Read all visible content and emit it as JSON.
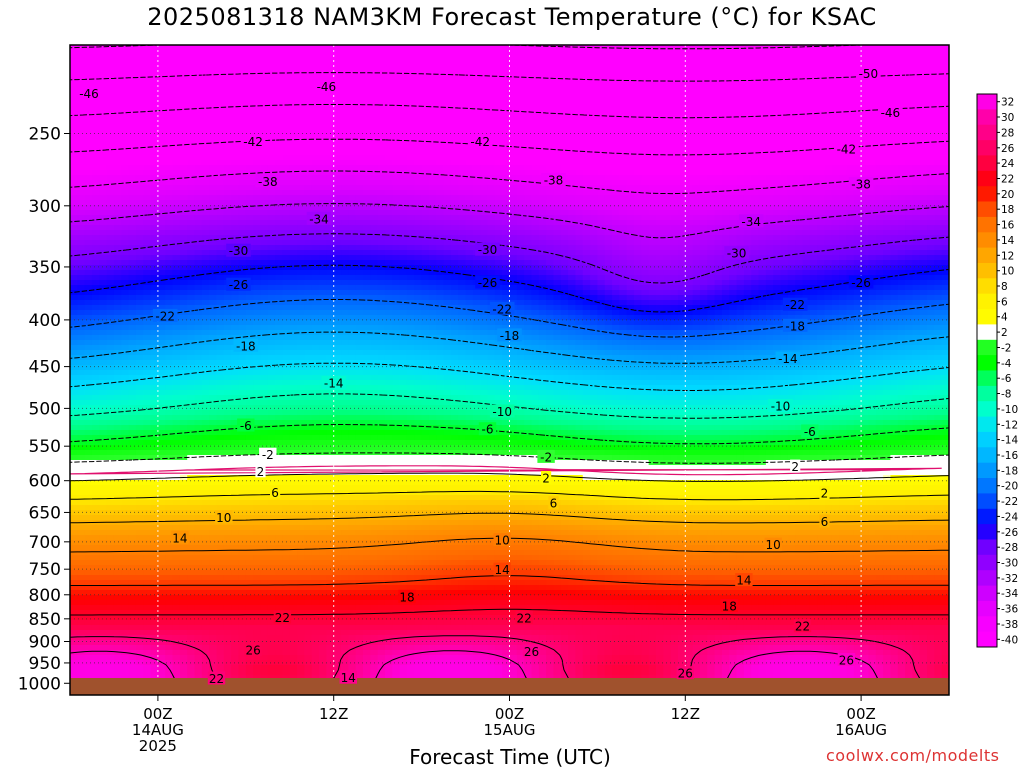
{
  "chart_data": {
    "type": "heatmap",
    "title": "2025081318 NAM3KM Forecast Temperature (°C) for KSAC",
    "xlabel": "Forecast Time (UTC)",
    "ylabel": "",
    "y_scale": "log",
    "y_reversed": true,
    "y_unit": "hPa",
    "ylim": [
      1030,
      200
    ],
    "y_ticks": [
      250,
      300,
      350,
      400,
      450,
      500,
      550,
      600,
      650,
      700,
      750,
      800,
      850,
      900,
      950,
      1000
    ],
    "x_unit": "hours since 2025-08-13 18Z",
    "xlim": [
      0,
      60
    ],
    "x_ticks": [
      {
        "x": 6,
        "label": [
          "00Z",
          "14AUG",
          "2025"
        ]
      },
      {
        "x": 18,
        "label": [
          "12Z"
        ]
      },
      {
        "x": 30,
        "label": [
          "00Z",
          "15AUG"
        ]
      },
      {
        "x": 42,
        "label": [
          "12Z"
        ]
      },
      {
        "x": 54,
        "label": [
          "00Z",
          "16AUG"
        ]
      }
    ],
    "grid": true,
    "color_scale": {
      "levels": [
        -40,
        -38,
        -36,
        -34,
        -32,
        -30,
        -28,
        -26,
        -24,
        -22,
        -20,
        -18,
        -16,
        -14,
        -12,
        -10,
        -8,
        -6,
        -4,
        -2,
        2,
        4,
        6,
        8,
        10,
        12,
        14,
        16,
        18,
        20,
        22,
        24,
        26,
        28,
        30,
        32
      ],
      "labels": [
        "32",
        "30",
        "28",
        "26",
        "24",
        "22",
        "20",
        "18",
        "16",
        "14",
        "12",
        "10",
        "8",
        "6",
        "4",
        "2",
        "-2",
        "-4",
        "-6",
        "-8",
        "-10",
        "-12",
        "-14",
        "-16",
        "-18",
        "-20",
        "-22",
        "-24",
        "-26",
        "-28",
        "-30",
        "-32",
        "-34",
        "-36",
        "-38",
        "-40"
      ],
      "stops": [
        {
          "t": -50,
          "c": "#ff00ff"
        },
        {
          "t": -40,
          "c": "#ff00ff"
        },
        {
          "t": -36,
          "c": "#dd00ff"
        },
        {
          "t": -32,
          "c": "#a000ff"
        },
        {
          "t": -29,
          "c": "#7000ff"
        },
        {
          "t": -26,
          "c": "#0000ff"
        },
        {
          "t": -22,
          "c": "#0066ff"
        },
        {
          "t": -18,
          "c": "#00aaff"
        },
        {
          "t": -14,
          "c": "#00ddff"
        },
        {
          "t": -11,
          "c": "#00ffcc"
        },
        {
          "t": -8,
          "c": "#00ff88"
        },
        {
          "t": -5,
          "c": "#00ff00"
        },
        {
          "t": -2.01,
          "c": "#33ff33"
        },
        {
          "t": -2,
          "c": "#ffffff"
        },
        {
          "t": 2,
          "c": "#ffffff"
        },
        {
          "t": 2.01,
          "c": "#ffff00"
        },
        {
          "t": 6,
          "c": "#ffee00"
        },
        {
          "t": 8,
          "c": "#ffcc00"
        },
        {
          "t": 12,
          "c": "#ff9900"
        },
        {
          "t": 16,
          "c": "#ff6600"
        },
        {
          "t": 20,
          "c": "#ff0000"
        },
        {
          "t": 24,
          "c": "#ff0055"
        },
        {
          "t": 28,
          "c": "#ff0099"
        },
        {
          "t": 32,
          "c": "#ff00dd"
        },
        {
          "t": 40,
          "c": "#ff00ff"
        }
      ]
    },
    "ground_color": "#a0522d",
    "contour_labels": [
      {
        "v": -50,
        "x": 54.5,
        "p": 215
      },
      {
        "v": -46,
        "x": 1.3,
        "p": 226
      },
      {
        "v": -46,
        "x": 17.5,
        "p": 222
      },
      {
        "v": -46,
        "x": 56.0,
        "p": 237
      },
      {
        "v": -42,
        "x": 12.5,
        "p": 255
      },
      {
        "v": -42,
        "x": 28.0,
        "p": 255
      },
      {
        "v": -42,
        "x": 53.0,
        "p": 260
      },
      {
        "v": -38,
        "x": 13.5,
        "p": 282
      },
      {
        "v": -38,
        "x": 33.0,
        "p": 281
      },
      {
        "v": -38,
        "x": 54.0,
        "p": 284
      },
      {
        "v": -34,
        "x": 17.0,
        "p": 310
      },
      {
        "v": -34,
        "x": 46.5,
        "p": 312
      },
      {
        "v": -30,
        "x": 11.5,
        "p": 336
      },
      {
        "v": -30,
        "x": 28.5,
        "p": 335
      },
      {
        "v": -30,
        "x": 45.5,
        "p": 338
      },
      {
        "v": -26,
        "x": 11.5,
        "p": 366
      },
      {
        "v": -26,
        "x": 28.5,
        "p": 364
      },
      {
        "v": -26,
        "x": 54.0,
        "p": 364
      },
      {
        "v": -22,
        "x": 6.5,
        "p": 396
      },
      {
        "v": -22,
        "x": 29.5,
        "p": 389
      },
      {
        "v": -22,
        "x": 49.5,
        "p": 385
      },
      {
        "v": -18,
        "x": 12.0,
        "p": 427
      },
      {
        "v": -18,
        "x": 30.0,
        "p": 416
      },
      {
        "v": -18,
        "x": 49.5,
        "p": 406
      },
      {
        "v": -14,
        "x": 18.0,
        "p": 469
      },
      {
        "v": -14,
        "x": 49.0,
        "p": 441
      },
      {
        "v": -10,
        "x": 29.5,
        "p": 504
      },
      {
        "v": -10,
        "x": 48.5,
        "p": 497
      },
      {
        "v": -6,
        "x": 12.0,
        "p": 522
      },
      {
        "v": -6,
        "x": 28.5,
        "p": 527
      },
      {
        "v": -6,
        "x": 50.5,
        "p": 530
      },
      {
        "v": -2,
        "x": 13.5,
        "p": 562
      },
      {
        "v": -2,
        "x": 32.5,
        "p": 565
      },
      {
        "v": 2,
        "x": 13.0,
        "p": 586
      },
      {
        "v": 2,
        "x": 32.5,
        "p": 596
      },
      {
        "v": 2,
        "x": 49.5,
        "p": 579
      },
      {
        "v": 2,
        "x": 51.5,
        "p": 619
      },
      {
        "v": 6,
        "x": 14.0,
        "p": 618
      },
      {
        "v": 6,
        "x": 33.0,
        "p": 635
      },
      {
        "v": 6,
        "x": 51.5,
        "p": 665
      },
      {
        "v": 10,
        "x": 10.5,
        "p": 658
      },
      {
        "v": 10,
        "x": 29.5,
        "p": 697
      },
      {
        "v": 10,
        "x": 48.0,
        "p": 705
      },
      {
        "v": 14,
        "x": 7.5,
        "p": 693
      },
      {
        "v": 14,
        "x": 29.5,
        "p": 751
      },
      {
        "v": 14,
        "x": 46.0,
        "p": 771
      },
      {
        "v": 18,
        "x": 23.0,
        "p": 804
      },
      {
        "v": 18,
        "x": 45.0,
        "p": 823
      },
      {
        "v": 22,
        "x": 14.5,
        "p": 847
      },
      {
        "v": 22,
        "x": 31.0,
        "p": 848
      },
      {
        "v": 22,
        "x": 50.0,
        "p": 866
      },
      {
        "v": 22,
        "x": 10.0,
        "p": 988
      },
      {
        "v": 26,
        "x": 12.5,
        "p": 920
      },
      {
        "v": 26,
        "x": 31.5,
        "p": 923
      },
      {
        "v": 26,
        "x": 42.0,
        "p": 975
      },
      {
        "v": 26,
        "x": 53.0,
        "p": 943
      },
      {
        "v": 14,
        "x": 19.0,
        "p": 986
      }
    ]
  },
  "labels": {
    "title": "2025081318 NAM3KM Forecast Temperature (°C) for KSAC",
    "xlabel": "Forecast Time (UTC)",
    "credit": "coolwx.com/modelts"
  },
  "colors": {
    "plot_border": "#000000",
    "credit": "#dd3333",
    "freezing_line": "#e0106e"
  }
}
